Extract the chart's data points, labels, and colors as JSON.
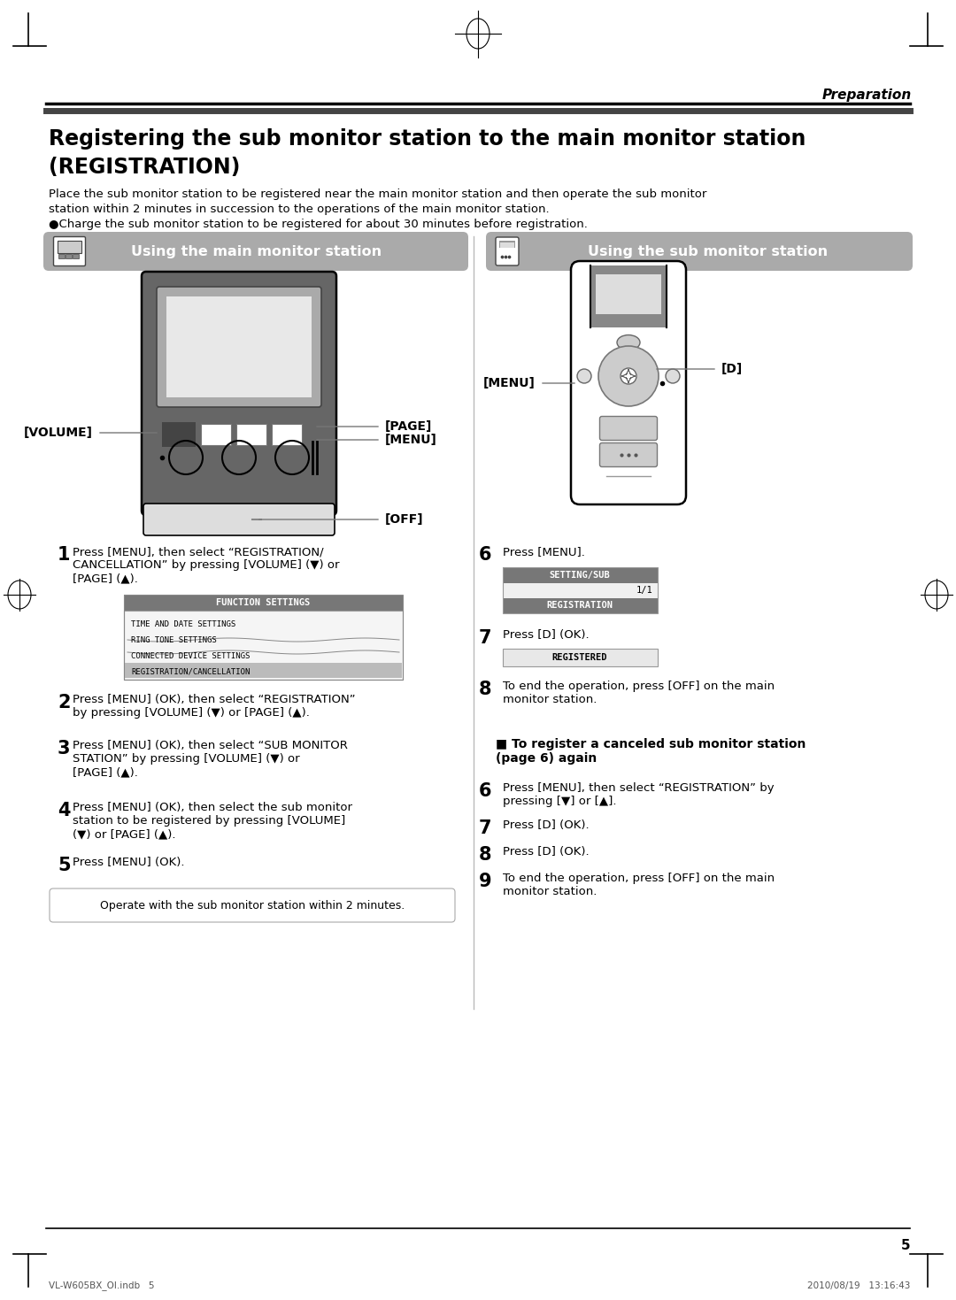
{
  "page_bg": "#ffffff",
  "page_number": "5",
  "header_italic": "Preparation",
  "title_line1": "Registering the sub monitor station to the main monitor station",
  "title_line2": "(REGISTRATION)",
  "intro1": "Place the sub monitor station to be registered near the main monitor station and then operate the sub monitor",
  "intro2": "station within 2 minutes in succession to the operations of the main monitor station.",
  "intro3": "●Charge the sub monitor station to be registered for about 30 minutes before registration.",
  "left_banner": "Using the main monitor station",
  "right_banner": "Using the sub monitor station",
  "menu_items": [
    "TIME AND DATE SETTINGS",
    "RING TONE SETTINGS",
    "CONNECTED DEVICE SETTINGS",
    "REGISTRATION/CANCELLATION"
  ],
  "note_box": "Operate with the sub monitor station within 2 minutes.",
  "footer_text": "VL-W605BX_OI.indb   5",
  "footer_right": "2010/08/19   13:16:43",
  "gray_banner": "#aaaaaa",
  "dark_menu_bg": "#666666",
  "mid_gray": "#999999",
  "light_gray": "#cccccc",
  "lighter_gray": "#e0e0e0",
  "device_dark": "#555555",
  "device_mid": "#888888",
  "device_light": "#bbbbbb"
}
